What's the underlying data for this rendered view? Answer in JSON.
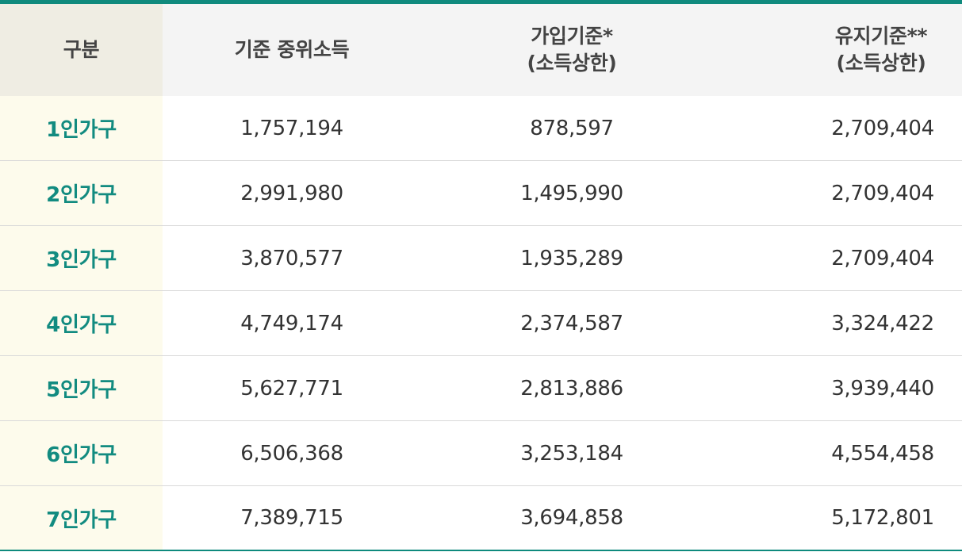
{
  "header": {
    "col0": "구분",
    "col1": "기준 중위소득",
    "col2_line1": "가입기준*",
    "col2_line2": "(소득상한)",
    "col3_line1": "유지기준**",
    "col3_line2": "(소득상한)"
  },
  "rows": [
    {
      "label": "1인가구",
      "median": "1,757,194",
      "join": "878,597",
      "keep": "2,709,404"
    },
    {
      "label": "2인가구",
      "median": "2,991,980",
      "join": "1,495,990",
      "keep": "2,709,404"
    },
    {
      "label": "3인가구",
      "median": "3,870,577",
      "join": "1,935,289",
      "keep": "2,709,404"
    },
    {
      "label": "4인가구",
      "median": "4,749,174",
      "join": "2,374,587",
      "keep": "3,324,422"
    },
    {
      "label": "5인가구",
      "median": "5,627,771",
      "join": "2,813,886",
      "keep": "3,939,440"
    },
    {
      "label": "6인가구",
      "median": "6,506,368",
      "join": "3,253,184",
      "keep": "4,554,458"
    },
    {
      "label": "7인가구",
      "median": "7,389,715",
      "join": "3,694,858",
      "keep": "5,172,801"
    }
  ]
}
